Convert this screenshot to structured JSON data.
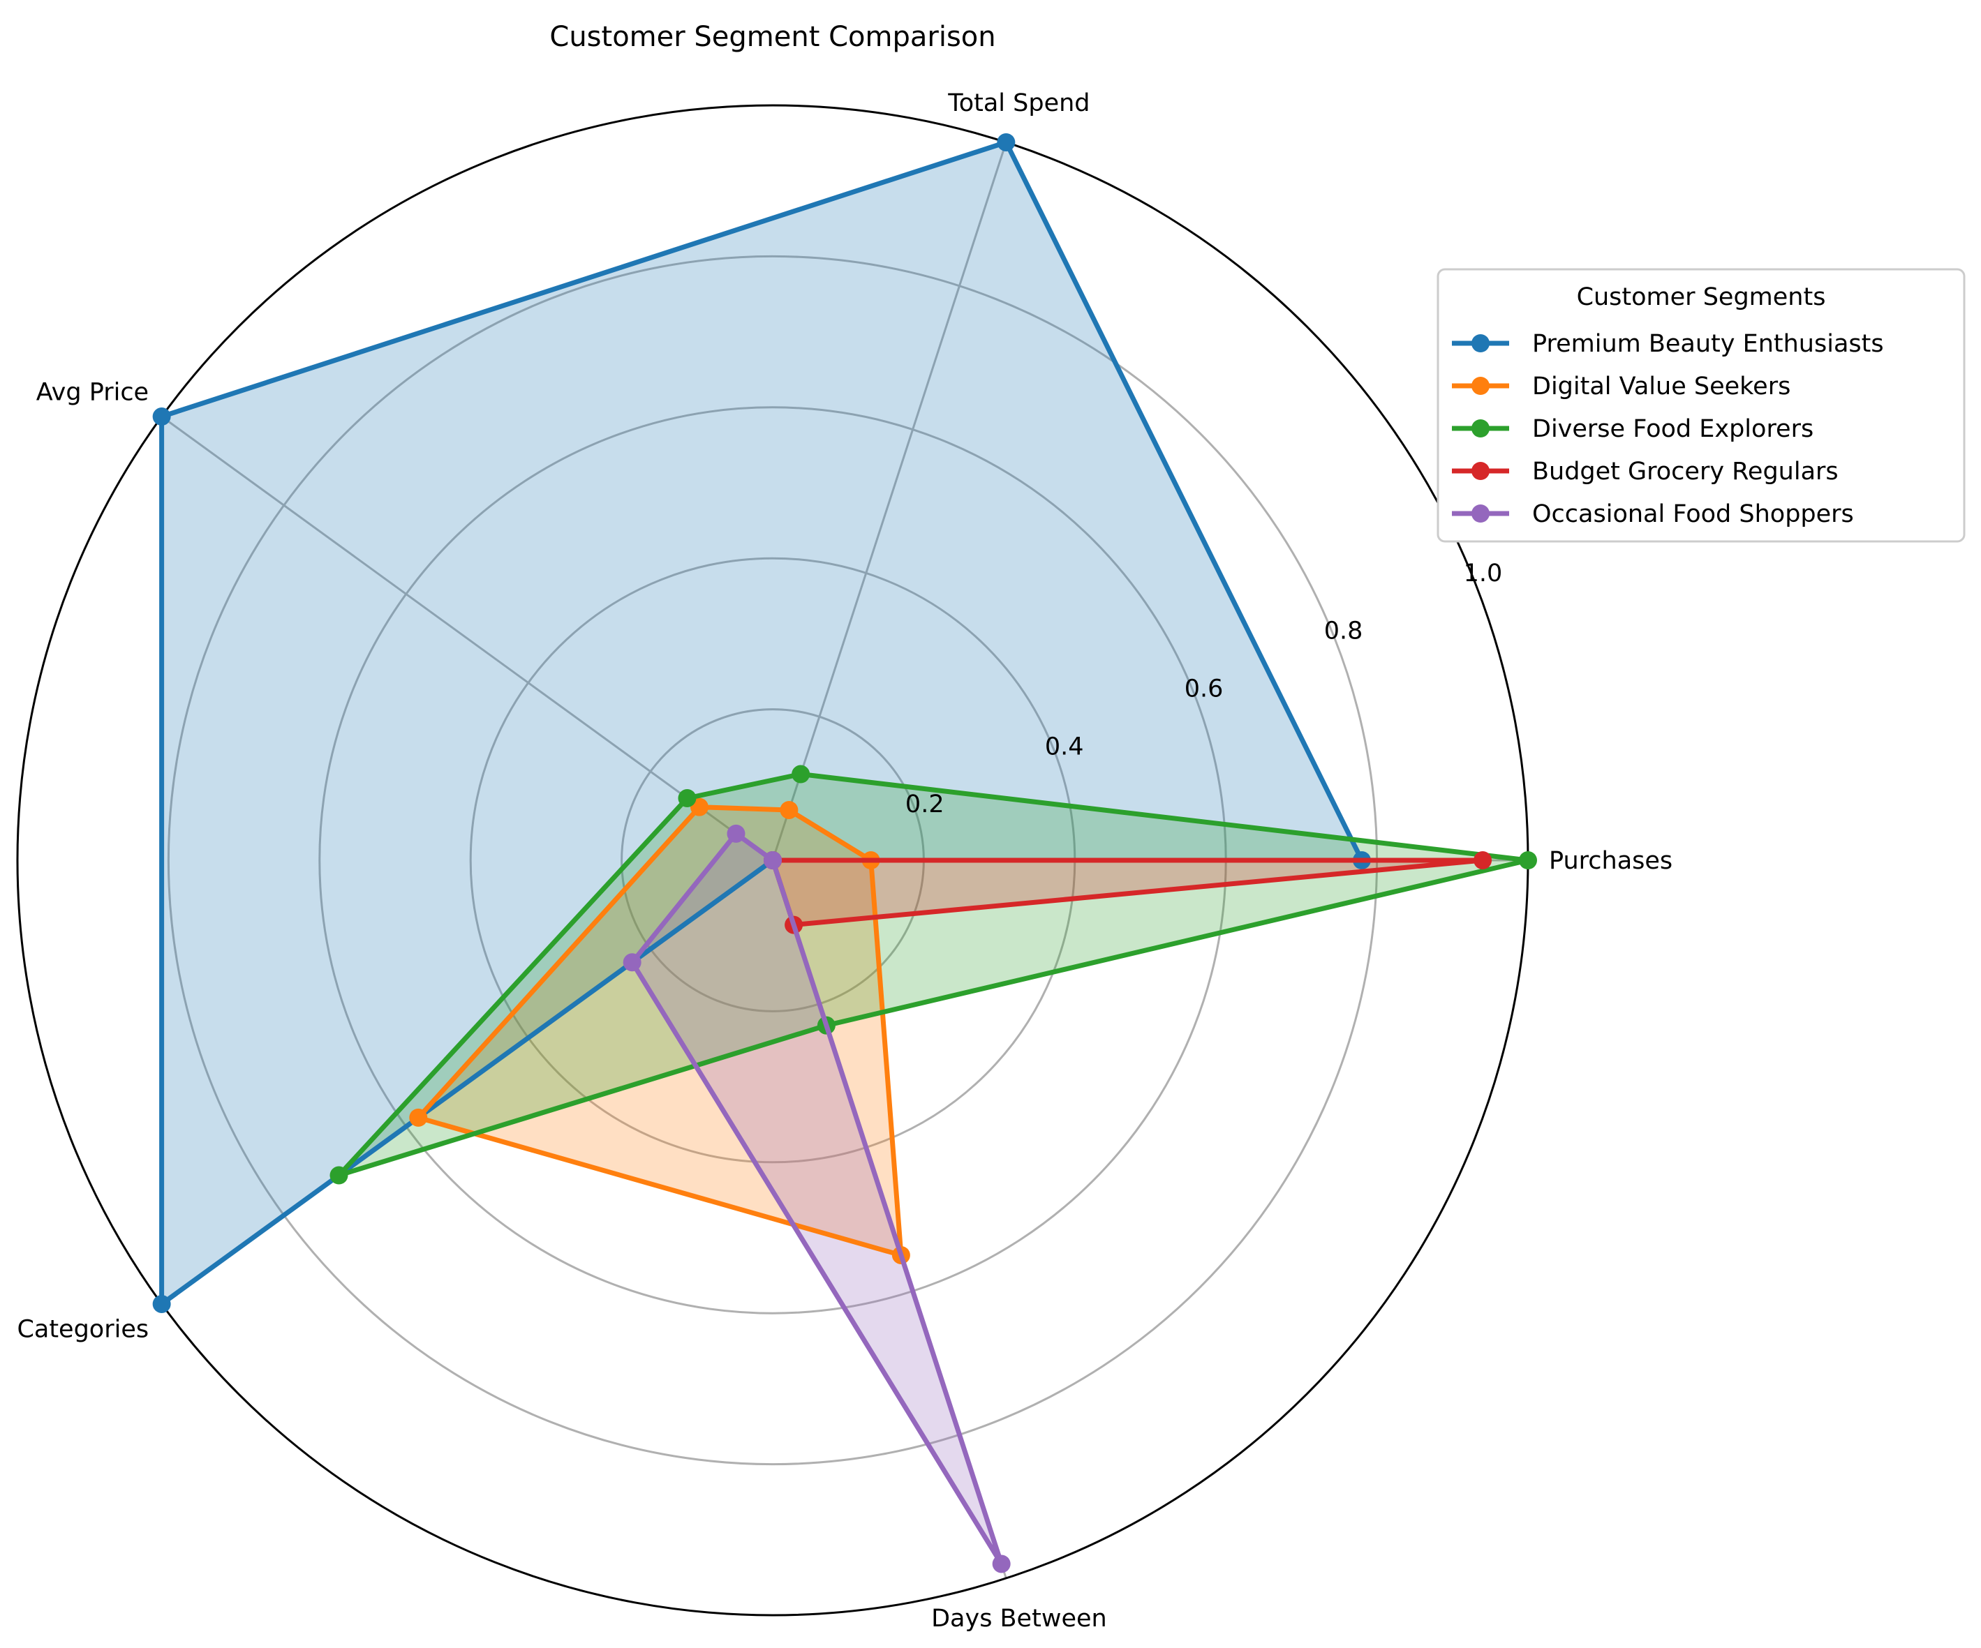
{
  "chart_data": {
    "type": "radar",
    "title": "Customer Segment Comparison",
    "axes": [
      "Purchases",
      "Total Spend",
      "Avg Price",
      "Categories",
      "Days Between"
    ],
    "rlim": [
      0,
      1
    ],
    "radial_ticks": [
      "0.2",
      "0.4",
      "0.6",
      "0.8",
      "1.0"
    ],
    "radial_tick_values": [
      0.2,
      0.4,
      0.6,
      0.8,
      1.0
    ],
    "grid": true,
    "legend": {
      "title": "Customer Segments",
      "placement": "right, outside plot"
    },
    "series": [
      {
        "name": "Premium Beauty Enthusiasts",
        "color": "#1f77b4",
        "values": [
          0.78,
          1.0,
          1.0,
          1.0,
          0.0
        ]
      },
      {
        "name": "Digital Value Seekers",
        "color": "#ff7f0e",
        "values": [
          0.13,
          0.07,
          0.12,
          0.58,
          0.55
        ]
      },
      {
        "name": "Diverse Food Explorers",
        "color": "#2ca02c",
        "values": [
          1.0,
          0.12,
          0.14,
          0.71,
          0.23
        ]
      },
      {
        "name": "Budget Grocery Regulars",
        "color": "#d62728",
        "values": [
          0.94,
          0.0,
          0.0,
          0.0,
          0.09
        ]
      },
      {
        "name": "Occasional Food Shoppers",
        "color": "#9467bd",
        "values": [
          0.0,
          0.0,
          0.06,
          0.23,
          0.98
        ]
      }
    ]
  }
}
